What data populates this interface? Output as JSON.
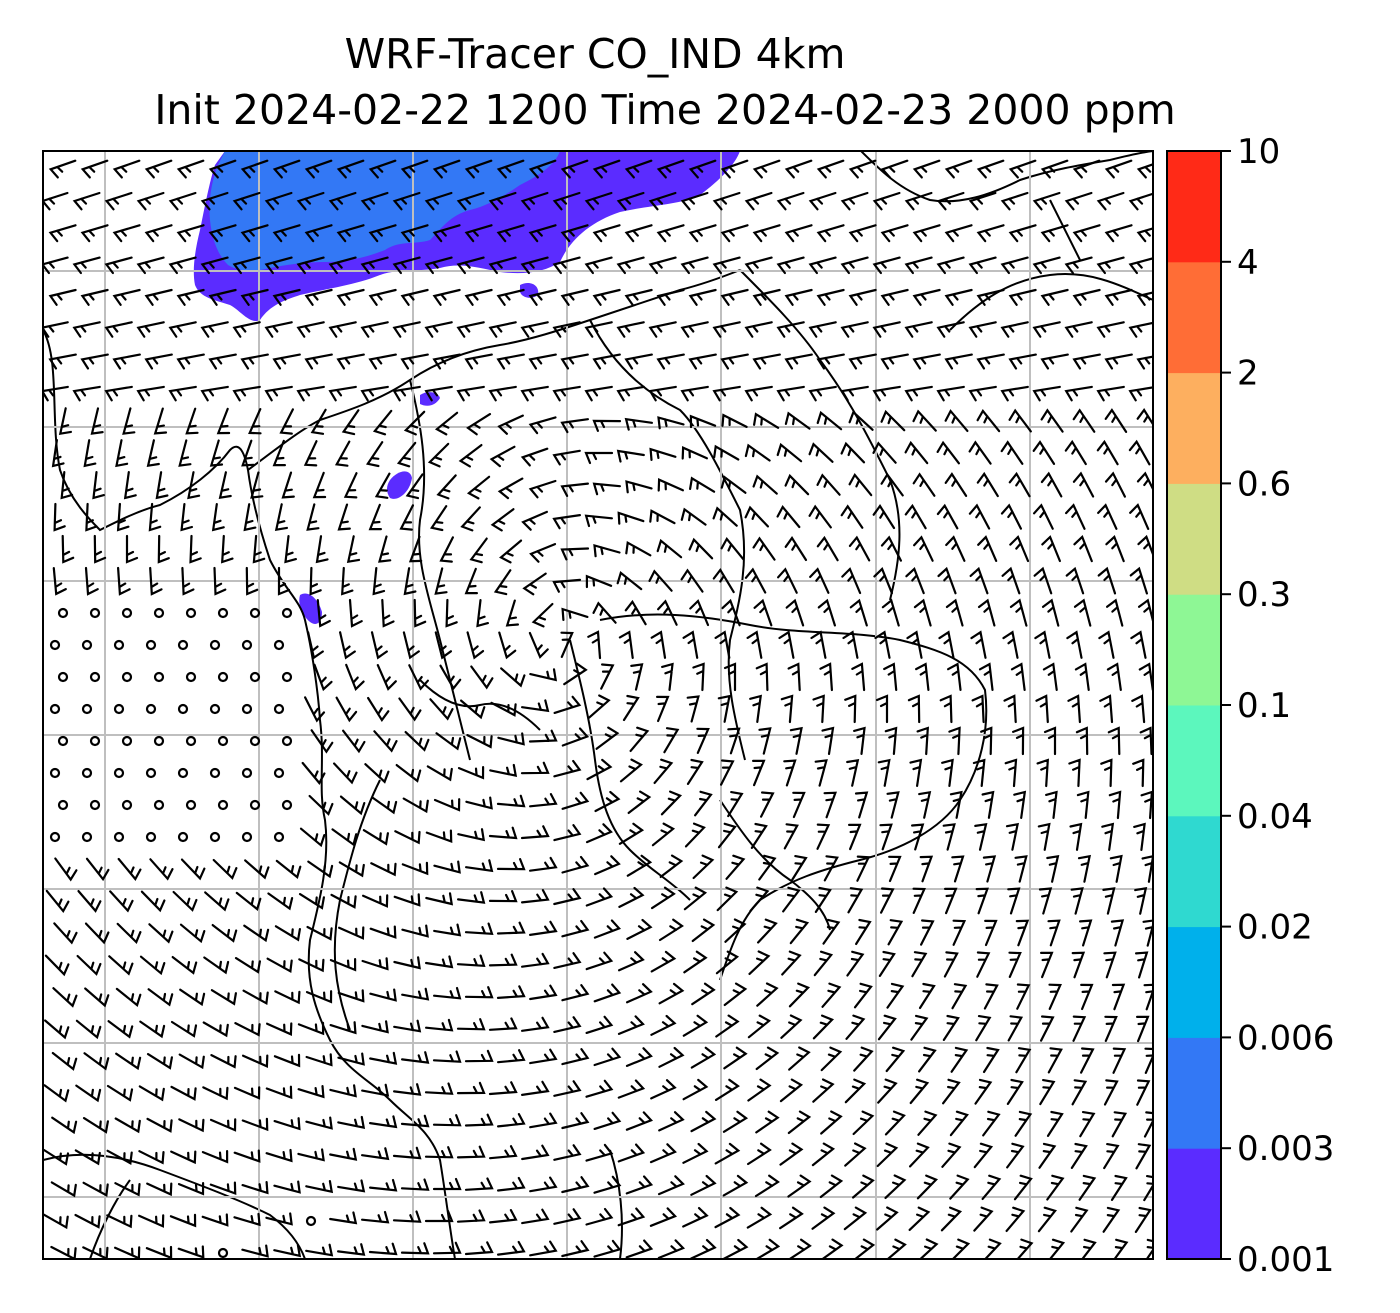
{
  "title": {
    "line1": "WRF-Tracer CO_IND 4km",
    "line2": "Init 2024-02-22 1200 Time 2024-02-23 2000 ppm"
  },
  "colorbar": {
    "labels": [
      "0.001",
      "0.003",
      "0.006",
      "0.02",
      "0.04",
      "0.1",
      "0.3",
      "0.6",
      "2",
      "4",
      "10"
    ],
    "colors": [
      "#5b2cff",
      "#3378f5",
      "#00b0eb",
      "#2fd9d0",
      "#5cf7bd",
      "#8ef795",
      "#cfdd84",
      "#fdaf5f",
      "#ff6d36",
      "#ff2a17"
    ]
  },
  "map": {
    "tracer_colors": {
      "low": "#5b2cff",
      "mid": "#3378f5"
    },
    "gridline_color": "#bfbfbf",
    "symbols": [
      "wind-barbs",
      "calm-circles",
      "coastlines",
      "borders"
    ]
  }
}
